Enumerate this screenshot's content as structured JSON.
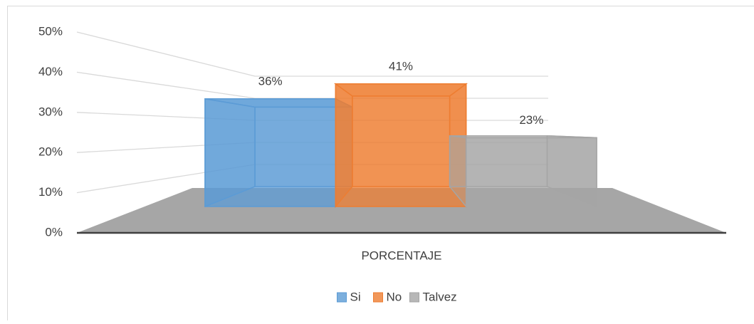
{
  "chart_data": {
    "type": "bar3d",
    "categories": [
      "PORCENTAJE"
    ],
    "series": [
      {
        "name": "Si",
        "color": "#5b9bd5",
        "values": [
          36
        ],
        "value_labels": [
          "36%"
        ]
      },
      {
        "name": "No",
        "color": "#ed7d31",
        "values": [
          41
        ],
        "value_labels": [
          "41%"
        ]
      },
      {
        "name": "Talvez",
        "color": "#a5a5a5",
        "values": [
          23
        ],
        "value_labels": [
          "23%"
        ]
      }
    ],
    "ylim": [
      0,
      50
    ],
    "yticks": [
      {
        "value": 0,
        "label": "0%"
      },
      {
        "value": 10,
        "label": "10%"
      },
      {
        "value": 20,
        "label": "20%"
      },
      {
        "value": 30,
        "label": "30%"
      },
      {
        "value": 40,
        "label": "40%"
      },
      {
        "value": 50,
        "label": "50%"
      }
    ],
    "grid": true,
    "legend": "bottom"
  }
}
